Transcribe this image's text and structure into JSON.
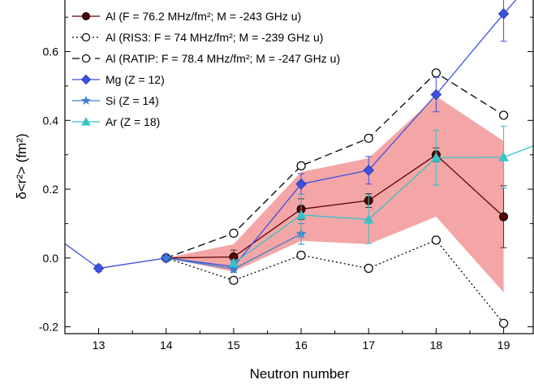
{
  "chart_data": {
    "type": "line",
    "xlabel": "Neutron number",
    "ylabel": "δ<r²> (fm²)",
    "xlim": [
      12.5,
      19.45
    ],
    "ylim": [
      -0.22,
      0.75
    ],
    "x_ticks": [
      "13",
      "14",
      "15",
      "16",
      "17",
      "18",
      "19"
    ],
    "y_ticks": [
      "-0.2",
      "0.0",
      "0.2",
      "0.4",
      "0.6"
    ],
    "grid": false,
    "legend_position": "top-left",
    "band": {
      "color": "#f4a6a6",
      "x": [
        14,
        15,
        16,
        17,
        18,
        19
      ],
      "upper": [
        0.0,
        0.04,
        0.25,
        0.29,
        0.47,
        0.34
      ],
      "lower": [
        0.0,
        -0.04,
        0.05,
        0.04,
        0.12,
        -0.1
      ]
    },
    "series": [
      {
        "name": "Al (F = 76.2 MHz/fm²; M = -243 GHz u)",
        "color": "#5a0000",
        "marker": "filled-circle",
        "line_style": "solid",
        "x": [
          14,
          15,
          16,
          17,
          18,
          19
        ],
        "y": [
          0.0,
          0.003,
          0.142,
          0.167,
          0.3,
          0.12
        ],
        "err": [
          0,
          0.02,
          0.03,
          0.02,
          0.02,
          0.09
        ]
      },
      {
        "name": "Al (RIS3: F = 74 MHz/fm²; M = -239 GHz u)",
        "color": "#000000",
        "marker": "open-circle",
        "line_style": "dotted",
        "x": [
          14,
          15,
          16,
          17,
          18,
          19
        ],
        "y": [
          0.0,
          -0.065,
          0.008,
          -0.03,
          0.052,
          -0.19
        ],
        "err": [
          0,
          0,
          0,
          0,
          0,
          0
        ]
      },
      {
        "name": "Al (RATIP: F = 78.4 MHz/fm²; M = -247 GHz u)",
        "color": "#000000",
        "marker": "open-circle",
        "line_style": "dashed",
        "x": [
          14,
          15,
          16,
          17,
          18,
          19
        ],
        "y": [
          0.0,
          0.072,
          0.268,
          0.348,
          0.538,
          0.415
        ],
        "err": [
          0,
          0,
          0,
          0,
          0,
          0
        ]
      },
      {
        "name": "Mg (Z = 12)",
        "color": "#3b4fe0",
        "marker": "diamond",
        "line_style": "solid",
        "x": [
          12.3,
          13,
          14,
          15,
          16,
          17,
          18,
          19,
          19.5
        ],
        "y": [
          0.07,
          -0.03,
          0.0,
          -0.025,
          0.215,
          0.255,
          0.475,
          0.71,
          0.82
        ],
        "err": [
          0,
          0.01,
          0,
          0.01,
          0.03,
          0.04,
          0.05,
          0.08,
          0
        ],
        "marker_mask": [
          false,
          true,
          true,
          true,
          true,
          true,
          true,
          true,
          false
        ]
      },
      {
        "name": "Si (Z = 14)",
        "color": "#3a7fd0",
        "marker": "star",
        "line_style": "solid",
        "x": [
          14,
          15,
          16
        ],
        "y": [
          0.0,
          -0.032,
          0.07
        ],
        "err": [
          0,
          0.01,
          0.03
        ]
      },
      {
        "name": "Ar (Z = 18)",
        "color": "#35c2c8",
        "marker": "triangle",
        "line_style": "solid",
        "x": [
          15,
          16,
          17,
          18,
          19,
          19.5
        ],
        "y": [
          -0.015,
          0.125,
          0.112,
          0.292,
          0.293,
          0.33
        ],
        "err": [
          0.01,
          0.06,
          0.07,
          0.08,
          0.09,
          0
        ],
        "marker_mask": [
          true,
          true,
          true,
          true,
          true,
          false
        ]
      }
    ]
  }
}
